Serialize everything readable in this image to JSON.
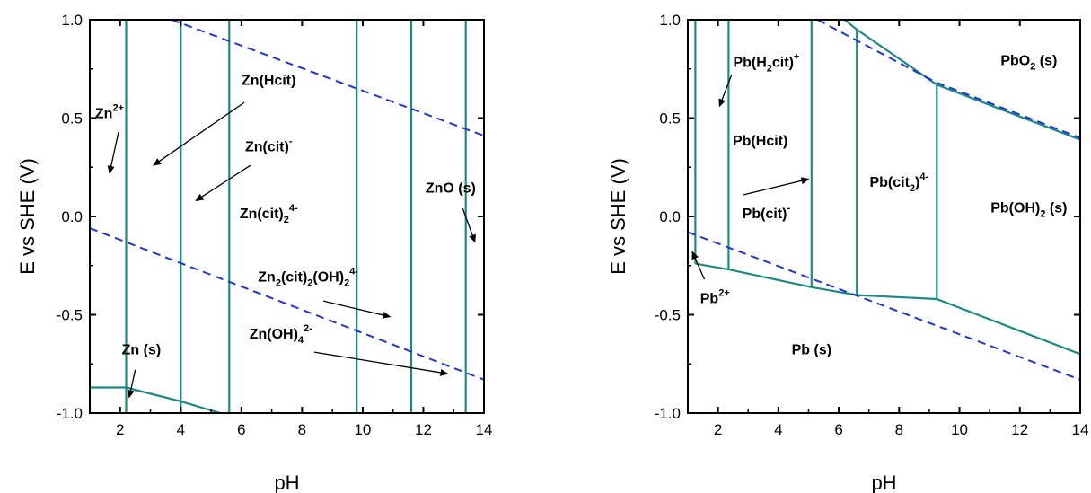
{
  "chart_data": [
    {
      "type": "line",
      "title": "",
      "xlabel": "pH",
      "ylabel": "E vs SHE (V)",
      "xlim": [
        1,
        14
      ],
      "ylim": [
        -1.0,
        1.0
      ],
      "x_ticks": [
        2,
        4,
        6,
        8,
        10,
        12,
        14
      ],
      "y_ticks": [
        -1.0,
        -0.5,
        0.0,
        0.5,
        1.0
      ],
      "x_tick_labels": [
        "2",
        "4",
        "6",
        "8",
        "10",
        "12",
        "14"
      ],
      "y_tick_labels": [
        "-1.0",
        "-0.5",
        "0.0",
        "0.5",
        "1.0"
      ],
      "grid": false,
      "colors": {
        "boundary": "#1a8a82",
        "water": "#1f35d6"
      },
      "boundaries": [
        {
          "points": [
            [
              2.2,
              -1.0
            ],
            [
              2.2,
              1.0
            ]
          ]
        },
        {
          "points": [
            [
              4.0,
              -1.0
            ],
            [
              4.0,
              1.0
            ]
          ]
        },
        {
          "points": [
            [
              5.6,
              -1.0
            ],
            [
              5.6,
              1.0
            ]
          ]
        },
        {
          "points": [
            [
              9.8,
              -1.0
            ],
            [
              9.8,
              1.0
            ]
          ]
        },
        {
          "points": [
            [
              11.6,
              -1.0
            ],
            [
              11.6,
              1.0
            ]
          ]
        },
        {
          "points": [
            [
              13.4,
              -1.0
            ],
            [
              13.4,
              1.0
            ]
          ]
        },
        {
          "points": [
            [
              1.0,
              -0.87
            ],
            [
              2.2,
              -0.87
            ],
            [
              4.0,
              -0.94
            ],
            [
              5.3,
              -1.0
            ]
          ]
        }
      ],
      "water_lines": [
        {
          "points": [
            [
              1.0,
              -0.06
            ],
            [
              14.0,
              -0.83
            ]
          ]
        },
        {
          "points": [
            [
              3.7,
              1.0
            ],
            [
              14.0,
              0.41
            ]
          ]
        }
      ],
      "labels": [
        {
          "x": 1.65,
          "y": 0.5,
          "parts": [
            [
              "Zn",
              "n"
            ],
            [
              "2+",
              "sup"
            ]
          ]
        },
        {
          "x": 6.9,
          "y": 0.67,
          "parts": [
            [
              "Zn(Hcit)",
              "n"
            ]
          ]
        },
        {
          "x": 6.9,
          "y": 0.33,
          "parts": [
            [
              "Zn(cit)",
              "n"
            ],
            [
              "-",
              "sup"
            ]
          ]
        },
        {
          "x": 6.9,
          "y": -0.01,
          "parts": [
            [
              "Zn(cit)",
              "n"
            ],
            [
              "2",
              "sub"
            ],
            [
              "4-",
              "sup"
            ]
          ]
        },
        {
          "x": 8.2,
          "y": -0.33,
          "parts": [
            [
              "Zn",
              "n"
            ],
            [
              "2",
              "sub"
            ],
            [
              "(cit)",
              "n"
            ],
            [
              "2",
              "sub"
            ],
            [
              "(OH)",
              "n"
            ],
            [
              "2",
              "sub"
            ],
            [
              "4-",
              "sup"
            ]
          ]
        },
        {
          "x": 7.3,
          "y": -0.62,
          "parts": [
            [
              "Zn(OH)",
              "n"
            ],
            [
              "4",
              "sub"
            ],
            [
              "2-",
              "sup"
            ]
          ]
        },
        {
          "x": 2.7,
          "y": -0.7,
          "parts": [
            [
              "Zn (s)",
              "n"
            ]
          ]
        },
        {
          "x": 12.9,
          "y": 0.12,
          "parts": [
            [
              "ZnO (s)",
              "n"
            ]
          ]
        }
      ],
      "arrows": [
        {
          "from": [
            1.95,
            0.43
          ],
          "to": [
            1.65,
            0.22
          ]
        },
        {
          "from": [
            6.1,
            0.58
          ],
          "to": [
            3.1,
            0.26
          ]
        },
        {
          "from": [
            6.3,
            0.26
          ],
          "to": [
            4.5,
            0.08
          ]
        },
        {
          "from": [
            8.7,
            -0.43
          ],
          "to": [
            10.9,
            -0.51
          ]
        },
        {
          "from": [
            8.4,
            -0.69
          ],
          "to": [
            12.8,
            -0.8
          ]
        },
        {
          "from": [
            2.5,
            -0.78
          ],
          "to": [
            2.3,
            -0.92
          ]
        },
        {
          "from": [
            13.3,
            0.04
          ],
          "to": [
            13.7,
            -0.13
          ]
        }
      ]
    },
    {
      "type": "line",
      "title": "",
      "xlabel": "pH",
      "ylabel": "E vs SHE (V)",
      "xlim": [
        1,
        14
      ],
      "ylim": [
        -1.0,
        1.0
      ],
      "x_ticks": [
        2,
        4,
        6,
        8,
        10,
        12,
        14
      ],
      "y_ticks": [
        -1.0,
        -0.5,
        0.0,
        0.5,
        1.0
      ],
      "x_tick_labels": [
        "2",
        "4",
        "6",
        "8",
        "10",
        "12",
        "14"
      ],
      "y_tick_labels": [
        "-1.0",
        "-0.5",
        "0.0",
        "0.5",
        "1.0"
      ],
      "grid": false,
      "colors": {
        "boundary": "#1a8a82",
        "water": "#1f35d6"
      },
      "boundaries": [
        {
          "points": [
            [
              1.25,
              -0.24
            ],
            [
              1.25,
              1.0
            ]
          ]
        },
        {
          "points": [
            [
              2.35,
              -0.27
            ],
            [
              2.35,
              1.0
            ]
          ]
        },
        {
          "points": [
            [
              5.1,
              -0.36
            ],
            [
              5.1,
              1.0
            ]
          ]
        },
        {
          "points": [
            [
              6.6,
              -0.4
            ],
            [
              6.6,
              0.95
            ]
          ]
        },
        {
          "points": [
            [
              9.25,
              -0.42
            ],
            [
              9.25,
              0.67
            ]
          ]
        },
        {
          "points": [
            [
              1.25,
              -0.24
            ],
            [
              2.35,
              -0.27
            ],
            [
              5.1,
              -0.36
            ],
            [
              6.6,
              -0.4
            ],
            [
              9.25,
              -0.42
            ],
            [
              14.0,
              -0.7
            ]
          ]
        },
        {
          "points": [
            [
              6.2,
              1.0
            ],
            [
              6.6,
              0.95
            ],
            [
              9.25,
              0.67
            ],
            [
              14.0,
              0.39
            ]
          ]
        }
      ],
      "water_lines": [
        {
          "points": [
            [
              1.0,
              -0.08
            ],
            [
              14.0,
              -0.83
            ]
          ]
        },
        {
          "points": [
            [
              5.3,
              1.0
            ],
            [
              9.25,
              0.68
            ],
            [
              14.0,
              0.4
            ]
          ]
        }
      ],
      "labels": [
        {
          "x": 3.6,
          "y": 0.76,
          "parts": [
            [
              "Pb(H",
              "n"
            ],
            [
              "2",
              "sub"
            ],
            [
              "cit)",
              "n"
            ],
            [
              "+",
              "sup"
            ]
          ]
        },
        {
          "x": 3.4,
          "y": 0.36,
          "parts": [
            [
              "Pb(Hcit)",
              "n"
            ]
          ]
        },
        {
          "x": 3.6,
          "y": -0.01,
          "parts": [
            [
              "Pb(cit)",
              "n"
            ],
            [
              "-",
              "sup"
            ]
          ]
        },
        {
          "x": 8.0,
          "y": 0.15,
          "parts": [
            [
              "Pb(cit",
              "n"
            ],
            [
              "2",
              "sub"
            ],
            [
              ")",
              "n"
            ],
            [
              "4-",
              "sup"
            ]
          ]
        },
        {
          "x": 12.3,
          "y": 0.77,
          "parts": [
            [
              "PbO",
              "n"
            ],
            [
              "2",
              "sub"
            ],
            [
              " (s)",
              "n"
            ]
          ]
        },
        {
          "x": 12.3,
          "y": 0.02,
          "parts": [
            [
              "Pb(OH)",
              "n"
            ],
            [
              "2",
              "sub"
            ],
            [
              " (s)",
              "n"
            ]
          ]
        },
        {
          "x": 1.9,
          "y": -0.44,
          "parts": [
            [
              "Pb",
              "n"
            ],
            [
              "2+",
              "sup"
            ]
          ]
        },
        {
          "x": 5.1,
          "y": -0.7,
          "parts": [
            [
              "Pb (s)",
              "n"
            ]
          ]
        }
      ],
      "arrows": [
        {
          "from": [
            2.45,
            0.72
          ],
          "to": [
            2.05,
            0.56
          ]
        },
        {
          "from": [
            2.85,
            0.11
          ],
          "to": [
            5.0,
            0.19
          ]
        },
        {
          "from": [
            1.55,
            -0.32
          ],
          "to": [
            1.15,
            -0.18
          ]
        }
      ]
    }
  ]
}
